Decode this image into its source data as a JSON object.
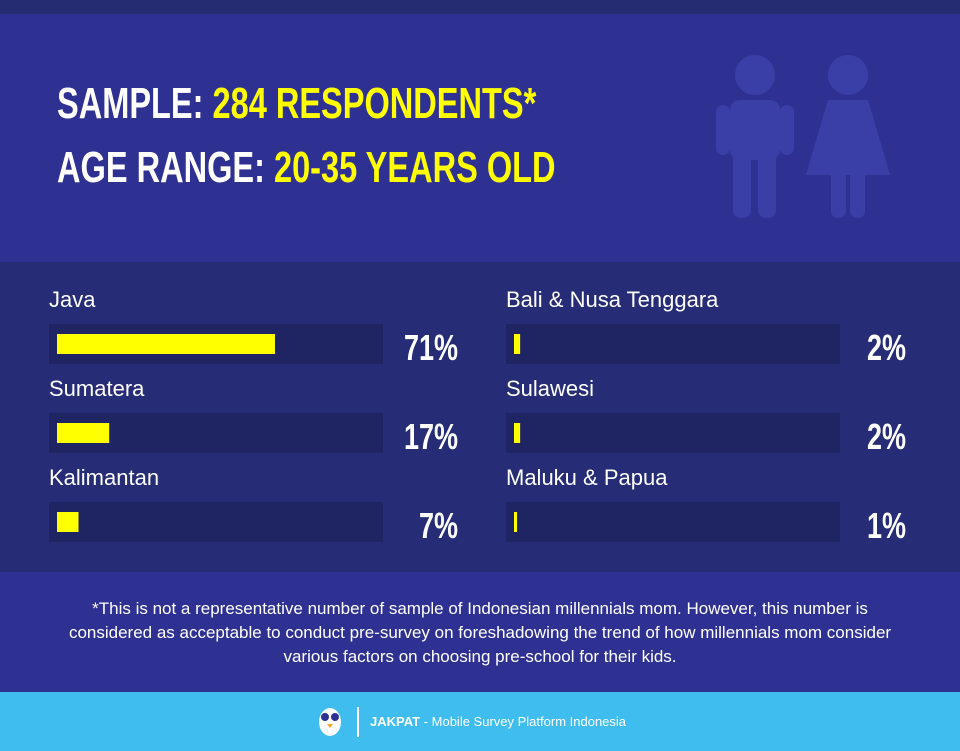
{
  "header": {
    "lines": [
      {
        "label": "SAMPLE:",
        "value": "284 RESPONDENTS*"
      },
      {
        "label": "AGE RANGE:",
        "value": "20-35 YEARS OLD"
      }
    ]
  },
  "chart_data": {
    "type": "bar",
    "categories": [
      "Java",
      "Sumatera",
      "Kalimantan",
      "Bali & Nusa Tenggara",
      "Sulawesi",
      "Maluku & Papua"
    ],
    "values": [
      71,
      17,
      7,
      2,
      2,
      1
    ],
    "value_labels": [
      "71%",
      "17%",
      "7%",
      "2%",
      "2%",
      "1%"
    ],
    "color": "#ffff00"
  },
  "note": [
    "*This is not a representative number of sample of Indonesian millennials mom. However, this number is",
    "considered as acceptable to conduct pre-survey on foreshadowing the trend of how millennials mom consider",
    "various factors on choosing pre-school for their kids."
  ],
  "footer": {
    "brand": "JAKPAT",
    "tagline": "- Mobile Survey Platform Indonesia"
  }
}
